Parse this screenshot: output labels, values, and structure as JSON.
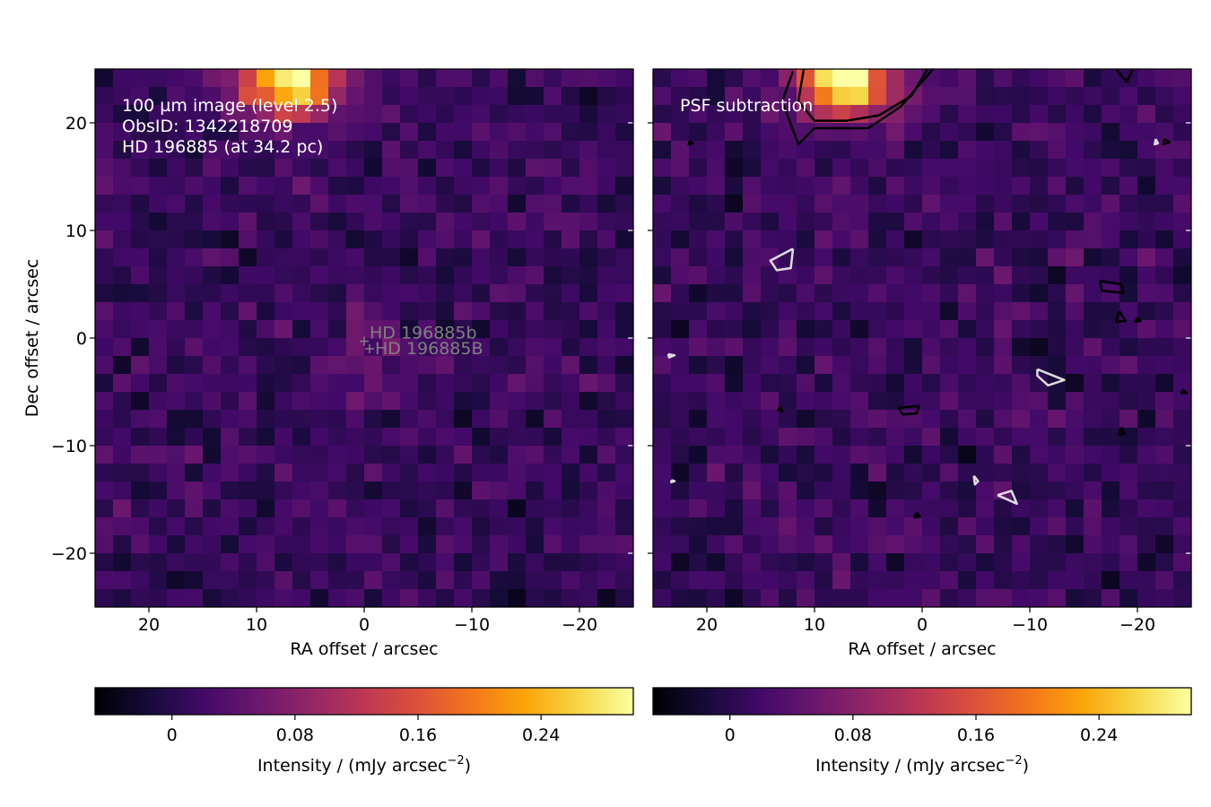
{
  "chart_data": [
    {
      "type": "heatmap",
      "panel": "left",
      "annotation_lines": [
        "100 µm image (level 2.5)",
        "ObsID: 1342218709",
        "HD 196885 (at 34.2 pc)"
      ],
      "xlabel": "RA offset / arcsec",
      "ylabel": "Dec offset / arcsec",
      "xlim": [
        25,
        -25
      ],
      "ylim": [
        -25,
        25
      ],
      "xticks": [
        20,
        10,
        0,
        -10,
        -20
      ],
      "xticklabels": [
        "20",
        "10",
        "0",
        "−10",
        "−20"
      ],
      "yticks": [
        20,
        10,
        0,
        -10,
        -20
      ],
      "yticklabels": [
        "20",
        "10",
        "0",
        "−10",
        "−20"
      ],
      "colormap": "inferno",
      "cmap_range": [
        -0.05,
        0.3
      ],
      "markers": [
        {
          "label": "HD 196885b",
          "ra": 0.0,
          "dec": -0.3,
          "color": "#808080"
        },
        {
          "label": "HD 196885B",
          "ra": -0.5,
          "dec": -1.0,
          "color": "#808080"
        }
      ],
      "bright_source": {
        "ra": 7,
        "dec": 24,
        "peak": 0.3
      },
      "central_excess": {
        "ra": 0,
        "dec": -2,
        "value": 0.09
      },
      "colorbar": {
        "label": "Intensity / (mJy arcsec",
        "label_exp": "−2",
        "label_end": ")",
        "ticks": [
          0,
          0.08,
          0.16,
          0.24
        ],
        "ticklabels": [
          "0",
          "0.08",
          "0.16",
          "0.24"
        ]
      }
    },
    {
      "type": "heatmap",
      "panel": "right",
      "annotation_lines": [
        "PSF subtraction"
      ],
      "xlabel": "RA offset / arcsec",
      "ylabel": "",
      "xlim": [
        25,
        -25
      ],
      "ylim": [
        -25,
        25
      ],
      "xticks": [
        20,
        10,
        0,
        -10,
        -20
      ],
      "xticklabels": [
        "20",
        "10",
        "0",
        "−10",
        "−20"
      ],
      "colormap": "inferno",
      "cmap_range": [
        -0.05,
        0.3
      ],
      "bright_source": {
        "ra": 7,
        "dec": 24,
        "peak": 0.3
      },
      "contours": [
        {
          "color": "#000000",
          "points": [
            [
              12,
              24.8
            ],
            [
              13,
              22
            ],
            [
              11.5,
              18
            ],
            [
              10,
              19.5
            ],
            [
              8,
              19.5
            ],
            [
              5,
              19.5
            ],
            [
              2,
              21.5
            ],
            [
              -1,
              25
            ]
          ]
        },
        {
          "color": "#000000",
          "points": [
            [
              11,
              25
            ],
            [
              11.5,
              22
            ],
            [
              10,
              20.2
            ],
            [
              7,
              20.2
            ],
            [
              4,
              20.7
            ],
            [
              1,
              22.5
            ],
            [
              -0.5,
              25
            ]
          ]
        },
        {
          "color": "#000000",
          "points": [
            [
              -18,
              25
            ],
            [
              -19,
              23.8
            ],
            [
              -19.6,
              25
            ]
          ]
        },
        {
          "color": "#000000",
          "points": [
            [
              -16.5,
              5.3
            ],
            [
              -18.5,
              5.0
            ],
            [
              -18.7,
              4.2
            ],
            [
              -16.7,
              4.4
            ],
            [
              -16.5,
              5.3
            ]
          ]
        },
        {
          "color": "#000000",
          "points": [
            [
              -18.3,
              2.5
            ],
            [
              -18.9,
              1.6
            ],
            [
              -18.0,
              1.5
            ],
            [
              -18.3,
              2.5
            ]
          ]
        },
        {
          "color": "#000000",
          "points": [
            [
              2.2,
              -6.5
            ],
            [
              0.3,
              -6.3
            ],
            [
              0.5,
              -7.0
            ],
            [
              1.8,
              -7.1
            ],
            [
              2.2,
              -6.5
            ]
          ]
        },
        {
          "color": "#000000",
          "points": [
            [
              -18.5,
              -8.3
            ],
            [
              -18.8,
              -8.9
            ],
            [
              -18.3,
              -9.0
            ],
            [
              -18.5,
              -8.3
            ]
          ]
        },
        {
          "color": "#000000",
          "points": [
            [
              -22.5,
              18.5
            ],
            [
              -23.0,
              18.2
            ],
            [
              -22.4,
              18.0
            ],
            [
              -22.5,
              18.5
            ]
          ]
        },
        {
          "color": "#000000",
          "points": [
            [
              -20.0,
              1.9
            ],
            [
              -20.3,
              1.6
            ],
            [
              -19.8,
              1.5
            ],
            [
              -20.0,
              1.9
            ]
          ]
        },
        {
          "color": "#000000",
          "points": [
            [
              -24.2,
              -4.8
            ],
            [
              -24.6,
              -5.1
            ],
            [
              -24.1,
              -5.1
            ],
            [
              -24.2,
              -4.8
            ]
          ]
        },
        {
          "color": "#000000",
          "points": [
            [
              13.2,
              -6.4
            ],
            [
              13.0,
              -6.8
            ],
            [
              13.4,
              -6.7
            ],
            [
              13.2,
              -6.4
            ]
          ]
        },
        {
          "color": "#000000",
          "points": [
            [
              0.5,
              -16.2
            ],
            [
              0.2,
              -16.6
            ],
            [
              0.7,
              -16.7
            ],
            [
              0.5,
              -16.2
            ]
          ]
        },
        {
          "color": "#000000",
          "points": [
            [
              21.6,
              18.3
            ],
            [
              21.3,
              18.1
            ],
            [
              21.7,
              18.0
            ],
            [
              21.6,
              18.3
            ]
          ]
        },
        {
          "color": "#dddddd",
          "points": [
            [
              12.0,
              8.3
            ],
            [
              14.1,
              7.2
            ],
            [
              13.5,
              6.3
            ],
            [
              12.2,
              6.5
            ],
            [
              12.0,
              8.3
            ]
          ]
        },
        {
          "color": "#dddddd",
          "points": [
            [
              -10.7,
              -2.9
            ],
            [
              -13.2,
              -3.9
            ],
            [
              -11.7,
              -4.4
            ],
            [
              -10.7,
              -3.5
            ],
            [
              -10.7,
              -2.9
            ]
          ]
        },
        {
          "color": "#dddddd",
          "points": [
            [
              -7.0,
              -14.6
            ],
            [
              -8.3,
              -14.2
            ],
            [
              -8.8,
              -15.4
            ],
            [
              -7.0,
              -14.6
            ]
          ]
        },
        {
          "color": "#dddddd",
          "points": [
            [
              -4.8,
              -12.8
            ],
            [
              -5.2,
              -13.3
            ],
            [
              -4.9,
              -13.6
            ],
            [
              -4.8,
              -12.8
            ]
          ]
        },
        {
          "color": "#dddddd",
          "points": [
            [
              -21.7,
              18.5
            ],
            [
              -21.6,
              18.0
            ],
            [
              -21.9,
              18.1
            ],
            [
              -21.7,
              18.5
            ]
          ]
        },
        {
          "color": "#dddddd",
          "points": [
            [
              23.6,
              -1.5
            ],
            [
              23.0,
              -1.6
            ],
            [
              23.5,
              -1.8
            ],
            [
              23.6,
              -1.5
            ]
          ]
        },
        {
          "color": "#dddddd",
          "points": [
            [
              23.3,
              -13.2
            ],
            [
              23.0,
              -13.3
            ],
            [
              23.3,
              -13.4
            ],
            [
              23.3,
              -13.2
            ]
          ]
        }
      ],
      "colorbar": {
        "label": "Intensity / (mJy arcsec",
        "label_exp": "−2",
        "label_end": ")",
        "ticks": [
          0,
          0.08,
          0.16,
          0.24
        ],
        "ticklabels": [
          "0",
          "0.08",
          "0.16",
          "0.24"
        ]
      }
    }
  ]
}
